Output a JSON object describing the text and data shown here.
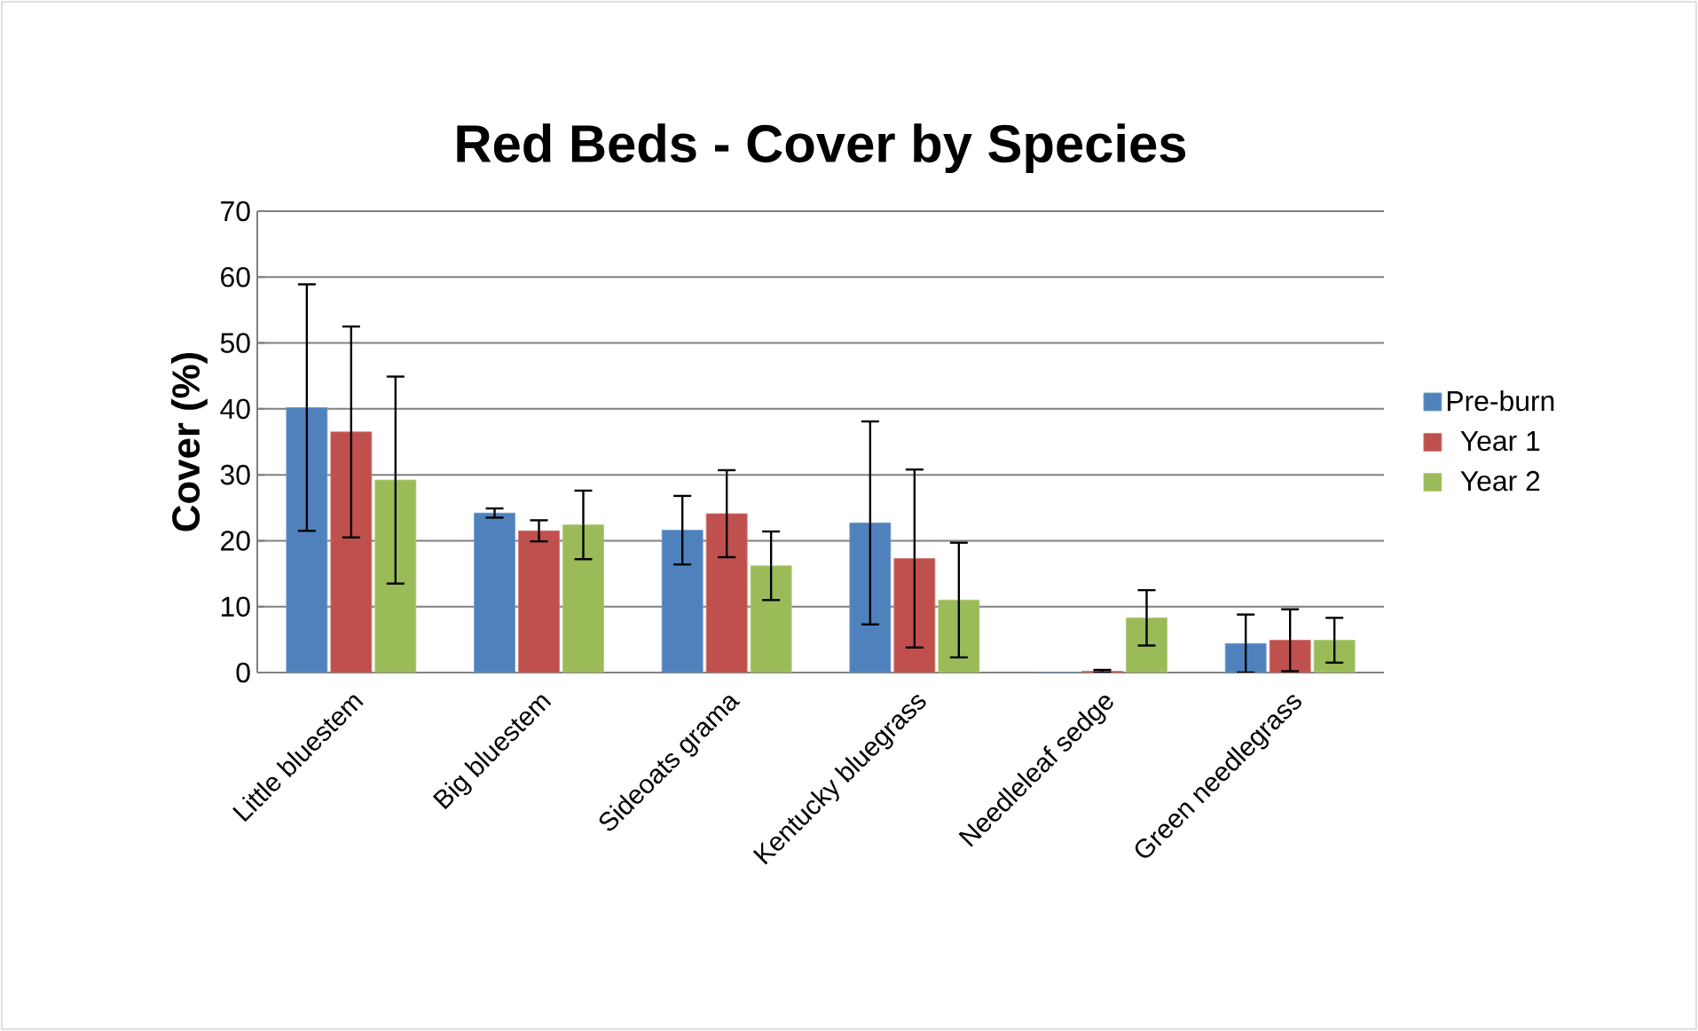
{
  "chart_data": {
    "type": "bar",
    "title": "Red Beds - Cover by Species",
    "ylabel": "Cover (%)",
    "categories": [
      "Little bluestem",
      "Big bluestem",
      "Sideoats grama",
      "Kentucky bluegrass",
      "Needleleaf sedge",
      "Green needlegrass"
    ],
    "series": [
      {
        "name": "Pre-burn",
        "color": "#4f81bd",
        "values": [
          40.2,
          24.2,
          21.6,
          22.7,
          0,
          4.4
        ],
        "errors": [
          18.7,
          0.7,
          5.2,
          15.4,
          null,
          4.4
        ]
      },
      {
        "name": "Year 1",
        "color": "#c0504d",
        "values": [
          36.5,
          21.5,
          24.1,
          17.3,
          0.2,
          4.9
        ],
        "errors": [
          16,
          1.6,
          6.6,
          13.5,
          0.2,
          4.7
        ]
      },
      {
        "name": "Year 2",
        "color": "#9bbb59",
        "values": [
          29.2,
          22.4,
          16.2,
          11.0,
          8.3,
          4.9
        ],
        "errors": [
          15.7,
          5.2,
          5.2,
          8.7,
          4.2,
          3.4
        ]
      }
    ],
    "ylim": [
      0,
      70
    ],
    "yticks": [
      0,
      10,
      20,
      30,
      40,
      50,
      60,
      70
    ],
    "grid": "y",
    "legend": "right"
  }
}
